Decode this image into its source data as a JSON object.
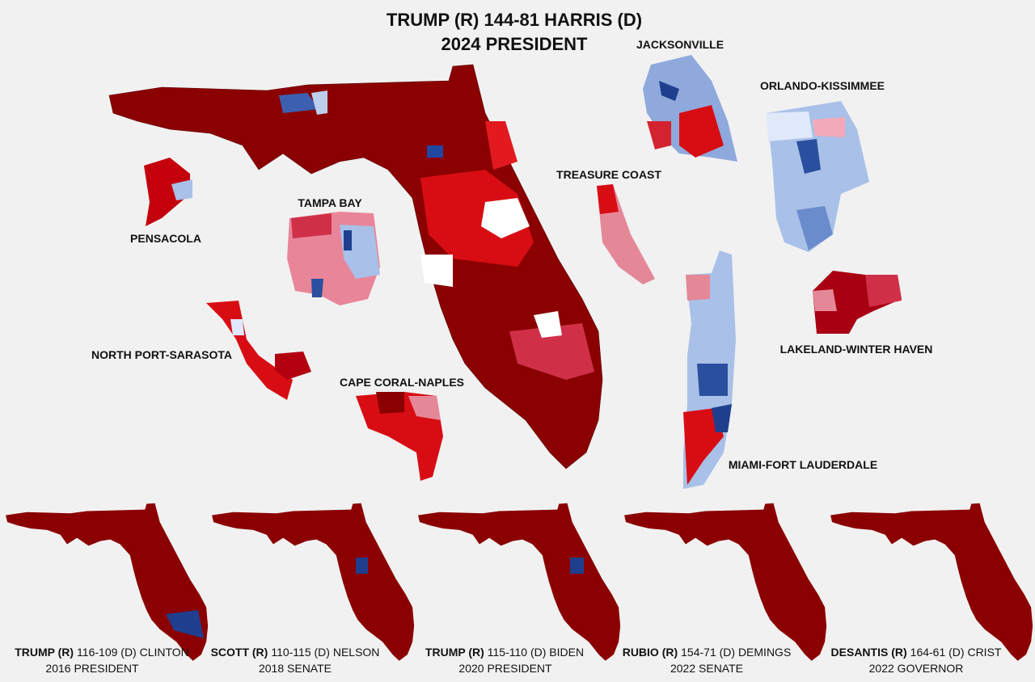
{
  "main": {
    "title_line1": "TRUMP (R) 144-81 HARRIS (D)",
    "title_line2": "2024 PRESIDENT"
  },
  "insets": [
    {
      "label": "JACKSONVILLE"
    },
    {
      "label": "ORLANDO-KISSIMMEE"
    },
    {
      "label": "TREASURE COAST"
    },
    {
      "label": "TAMPA BAY"
    },
    {
      "label": "PENSACOLA"
    },
    {
      "label": "NORTH PORT-SARASOTA"
    },
    {
      "label": "CAPE CORAL-NAPLES"
    },
    {
      "label": "LAKELAND-WINTER HAVEN"
    },
    {
      "label": "MIAMI-FORT LAUDERDALE"
    }
  ],
  "past_races": [
    {
      "winner": "TRUMP (R)",
      "result": "116-109 (D) CLINTON",
      "race": "2016 PRESIDENT"
    },
    {
      "winner": "SCOTT (R)",
      "result": "110-115 (D) NELSON",
      "race": "2018 SENATE"
    },
    {
      "winner": "TRUMP (R)",
      "result": "115-110 (D) BIDEN",
      "race": "2020 PRESIDENT"
    },
    {
      "winner": "RUBIO (R)",
      "result": "154-71 (D) DEMINGS",
      "race": "2022 SENATE"
    },
    {
      "winner": "DESANTIS (R)",
      "result": "164-61 (D) CRIST",
      "race": "2022 GOVERNOR"
    }
  ]
}
